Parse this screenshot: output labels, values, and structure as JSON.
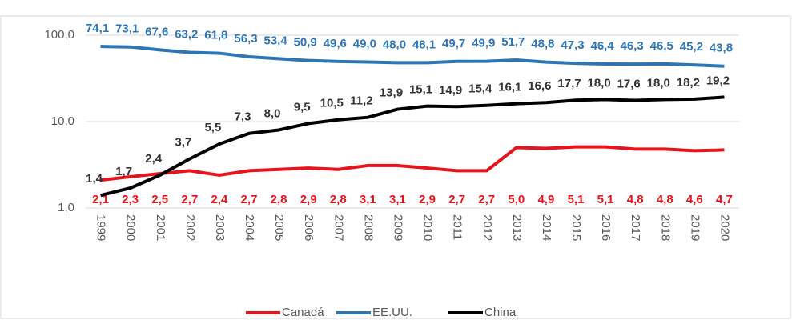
{
  "chart_data": {
    "type": "line",
    "log_scale": true,
    "grid": true,
    "legend": "bottom",
    "categories": [
      "1999",
      "2000",
      "2001",
      "2002",
      "2003",
      "2004",
      "2005",
      "2006",
      "2007",
      "2008",
      "2009",
      "2010",
      "2011",
      "2012",
      "2013",
      "2014",
      "2015",
      "2016",
      "2017",
      "2018",
      "2019",
      "2020"
    ],
    "ylim": [
      1,
      100
    ],
    "yticks": [
      {
        "value": 1,
        "label": "1,0"
      },
      {
        "value": 10,
        "label": "10,0"
      },
      {
        "value": 100,
        "label": "100,0"
      }
    ],
    "series": [
      {
        "name": "Canadá",
        "color": "#e8141b",
        "label_color": "#e8141b",
        "values": [
          2.1,
          2.3,
          2.5,
          2.7,
          2.4,
          2.7,
          2.8,
          2.9,
          2.8,
          3.1,
          3.1,
          2.9,
          2.7,
          2.7,
          5.0,
          4.9,
          5.1,
          5.1,
          4.8,
          4.8,
          4.6,
          4.7
        ],
        "value_labels": [
          "2,1",
          "2,3",
          "2,5",
          "2,7",
          "2,4",
          "2,7",
          "2,8",
          "2,9",
          "2,8",
          "3,1",
          "3,1",
          "2,9",
          "2,7",
          "2,7",
          "5,0",
          "4,9",
          "5,1",
          "5,1",
          "4,8",
          "4,8",
          "4,6",
          "4,7"
        ]
      },
      {
        "name": "EE.UU.",
        "color": "#2e75b6",
        "label_color": "#2e75b6",
        "values": [
          74.1,
          73.1,
          67.6,
          63.2,
          61.8,
          56.3,
          53.4,
          50.9,
          49.6,
          49.0,
          48.0,
          48.1,
          49.7,
          49.9,
          51.7,
          48.8,
          47.3,
          46.4,
          46.3,
          46.5,
          45.2,
          43.8
        ],
        "value_labels": [
          "74,1",
          "73,1",
          "67,6",
          "63,2",
          "61,8",
          "56,3",
          "53,4",
          "50,9",
          "49,6",
          "49,0",
          "48,0",
          "48,1",
          "49,7",
          "49,9",
          "51,7",
          "48,8",
          "47,3",
          "46,4",
          "46,3",
          "46,5",
          "45,2",
          "43,8"
        ]
      },
      {
        "name": "China",
        "color": "#000000",
        "label_color": "#333333",
        "values": [
          1.4,
          1.7,
          2.4,
          3.7,
          5.5,
          7.3,
          8.0,
          9.5,
          10.5,
          11.2,
          13.9,
          15.1,
          14.9,
          15.4,
          16.1,
          16.6,
          17.7,
          18.0,
          17.6,
          18.0,
          18.2,
          19.2
        ],
        "value_labels": [
          "1,4",
          "1,7",
          "2,4",
          "3,7",
          "5,5",
          "7,3",
          "8,0",
          "9,5",
          "10,5",
          "11,2",
          "13,9",
          "15,1",
          "14,9",
          "15,4",
          "16,1",
          "16,6",
          "17,7",
          "18,0",
          "17,6",
          "18,0",
          "18,2",
          "19,2"
        ]
      }
    ]
  }
}
